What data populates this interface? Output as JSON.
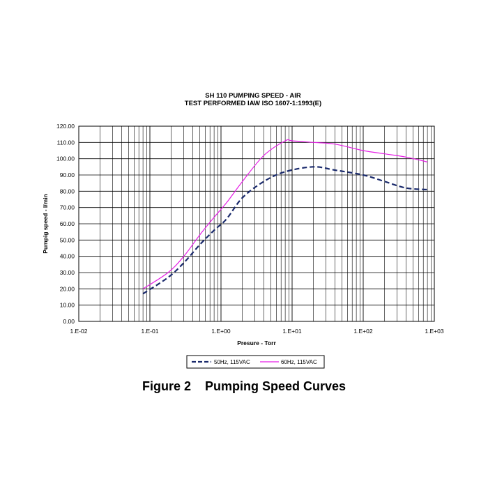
{
  "caption": "Figure 2    Pumping Speed Curves",
  "chart_data": {
    "type": "line",
    "title": [
      "SH 110 PUMPING SPEED - AIR",
      "TEST PERFORMED IAW ISO 1607-1:1993(E)"
    ],
    "xlabel": "Presure - Torr",
    "ylabel": "Pumpig speed - l/min",
    "xscale": "log",
    "xlim": [
      0.01,
      1000
    ],
    "ylim": [
      0,
      120
    ],
    "xticks": [
      {
        "value": 0.01,
        "label": "1.E-02"
      },
      {
        "value": 0.1,
        "label": "1.E-01"
      },
      {
        "value": 1,
        "label": "1.E+00"
      },
      {
        "value": 10,
        "label": "1.E+01"
      },
      {
        "value": 100,
        "label": "1.E+02"
      },
      {
        "value": 1000,
        "label": "1.E+03"
      }
    ],
    "yticks": [
      {
        "value": 0,
        "label": "0.00"
      },
      {
        "value": 10,
        "label": "10.00"
      },
      {
        "value": 20,
        "label": "20.00"
      },
      {
        "value": 30,
        "label": "30.00"
      },
      {
        "value": 40,
        "label": "40.00"
      },
      {
        "value": 50,
        "label": "50.00"
      },
      {
        "value": 60,
        "label": "60.00"
      },
      {
        "value": 70,
        "label": "70.00"
      },
      {
        "value": 80,
        "label": "80.00"
      },
      {
        "value": 90,
        "label": "90.00"
      },
      {
        "value": 100,
        "label": "100.00"
      },
      {
        "value": 110,
        "label": "110.00"
      },
      {
        "value": 120,
        "label": "120.00"
      }
    ],
    "grid": true,
    "legend_position": "bottom",
    "series": [
      {
        "name": "50Hz, 115VAC",
        "color": "#1a2a6c",
        "style": "dashed",
        "x": [
          0.08,
          0.18,
          0.3,
          0.5,
          0.8,
          1.2,
          2,
          4,
          8,
          20,
          40,
          100,
          200,
          400,
          800
        ],
        "y": [
          17,
          27,
          36,
          47,
          56,
          63,
          76,
          86,
          92,
          95,
          93,
          90,
          86,
          82,
          81
        ]
      },
      {
        "name": "60Hz, 115VAC",
        "color": "#e61ee6",
        "style": "solid",
        "x": [
          0.08,
          0.18,
          0.3,
          0.5,
          0.8,
          1.2,
          2,
          4,
          8,
          10,
          20,
          40,
          100,
          200,
          400,
          800
        ],
        "y": [
          20,
          30,
          40,
          53,
          64,
          73,
          86,
          102,
          111,
          111,
          110,
          109,
          105,
          103,
          101,
          98
        ]
      }
    ]
  }
}
